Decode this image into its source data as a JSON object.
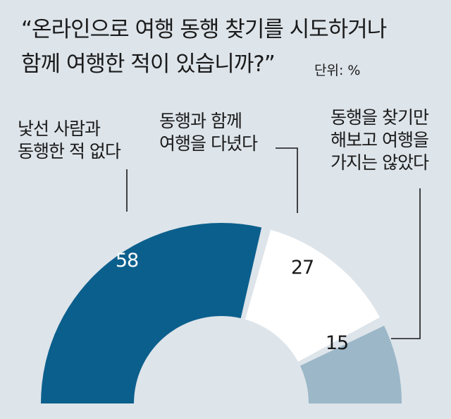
{
  "chart_data": {
    "type": "pie",
    "variant": "half-donut",
    "title": "“온라인으로 여행 동행 찾기를 시도하거나 함께 여행한 적이 있습니까?”",
    "title_lines": [
      "“온라인으로 여행 동행 찾기를 시도하거나",
      "함께 여행한 적이 있습니까?”"
    ],
    "unit": "단위: %",
    "series": [
      {
        "name": "낯선 사람과 동행한 적 없다",
        "label_lines": [
          "낯선 사람과",
          "동행한 적 없다"
        ],
        "value": 58,
        "color": "#0b5f8c",
        "value_color": "#ffffff"
      },
      {
        "name": "동행과 함께 여행을 다녔다",
        "label_lines": [
          "동행과 함께",
          "여행을 다녔다"
        ],
        "value": 27,
        "color": "#ffffff",
        "value_color": "#1a1a1a"
      },
      {
        "name": "동행을 찾기만 해보고 여행을 가지는 않았다",
        "label_lines": [
          "동행을 찾기만",
          "해보고 여행을",
          "가지는 않았다"
        ],
        "value": 15,
        "color": "#9bb7c8",
        "value_color": "#1a1a1a"
      }
    ],
    "background": "#dde4ea"
  }
}
